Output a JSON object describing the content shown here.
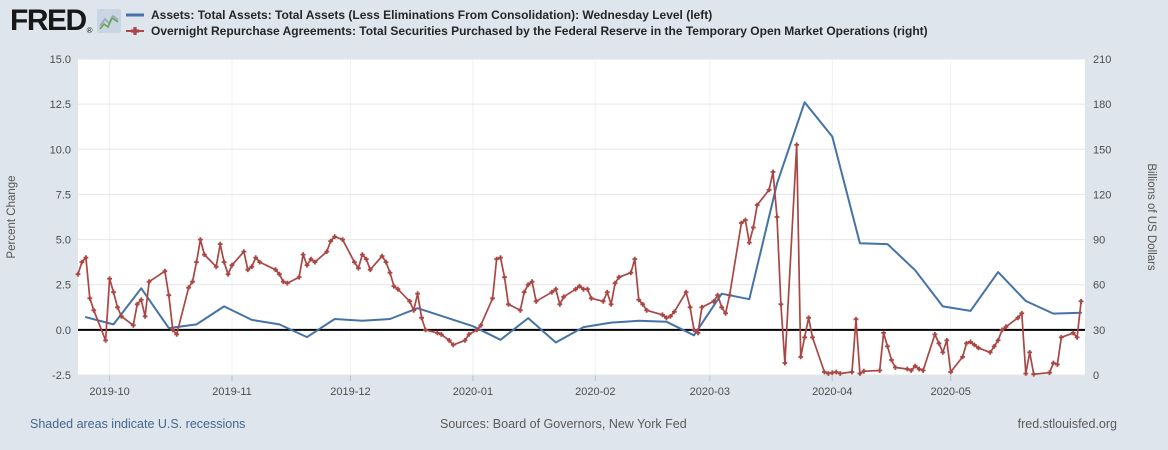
{
  "logo": {
    "text": "FRED",
    "registered": "®"
  },
  "legend": [
    {
      "label": "Assets: Total Assets: Total Assets (Less Eliminations From Consolidation): Wednesday Level (left)",
      "color": "#4572a7",
      "marker": "line"
    },
    {
      "label": "Overnight Repurchase Agreements: Total Securities Purchased by the Federal Reserve in the Temporary Open Market Operations (right)",
      "color": "#aa4643",
      "marker": "line-plus"
    }
  ],
  "footer": {
    "left": "Shaded areas indicate U.S. recessions",
    "center": "Sources: Board of Governors, New York Fed",
    "right": "fred.stlouisfed.org"
  },
  "colors": {
    "page_background": "#dee5ec",
    "plot_background": "#ffffff",
    "grid": "#e6e6e6",
    "vgrid": "#eff1f4",
    "zero_line": "#000000",
    "tick_text": "#4d4d4d",
    "axis_title": "#555555",
    "tick_mark": "#b8c4ce",
    "assets_line": "#4572a7",
    "repo_line": "#aa4643",
    "footer_link": "#44678f"
  },
  "chart_data": {
    "type": "line",
    "title": "",
    "left_axis": {
      "label": "Percent Change",
      "range": [
        -2.5,
        15.0
      ],
      "ticks": [
        15.0,
        12.5,
        10.0,
        7.5,
        5.0,
        2.5,
        0.0,
        -2.5
      ]
    },
    "right_axis": {
      "label": "Billions of US Dollars",
      "range": [
        0,
        210
      ],
      "ticks": [
        210,
        180,
        150,
        120,
        90,
        60,
        30,
        0
      ]
    },
    "x_axis": {
      "start": "2019-09-23",
      "end": "2020-06-04",
      "ticks": [
        {
          "date": "2019-10-01",
          "label": "2019-10"
        },
        {
          "date": "2019-11-01",
          "label": "2019-11"
        },
        {
          "date": "2019-12-01",
          "label": "2019-12"
        },
        {
          "date": "2020-01-01",
          "label": "2020-01"
        },
        {
          "date": "2020-02-01",
          "label": "2020-02"
        },
        {
          "date": "2020-03-01",
          "label": "2020-03"
        },
        {
          "date": "2020-04-01",
          "label": "2020-04"
        },
        {
          "date": "2020-05-01",
          "label": "2020-05"
        }
      ]
    },
    "grid": true,
    "legend_position": "top-left",
    "series": [
      {
        "name": "Assets: Total Assets: Total Assets (Less Eliminations From Consolidation): Wednesday Level",
        "axis": "left",
        "color": "#4572a7",
        "markers": false,
        "units": "Percent Change",
        "points": [
          [
            "2019-09-25",
            0.7
          ],
          [
            "2019-10-02",
            0.3
          ],
          [
            "2019-10-09",
            2.3
          ],
          [
            "2019-10-16",
            0.1
          ],
          [
            "2019-10-23",
            0.3
          ],
          [
            "2019-10-30",
            1.3
          ],
          [
            "2019-11-06",
            0.55
          ],
          [
            "2019-11-13",
            0.3
          ],
          [
            "2019-11-20",
            -0.4
          ],
          [
            "2019-11-27",
            0.6
          ],
          [
            "2019-12-04",
            0.5
          ],
          [
            "2019-12-11",
            0.6
          ],
          [
            "2019-12-18",
            1.2
          ],
          [
            "2019-12-25",
            0.7
          ],
          [
            "2020-01-01",
            0.2
          ],
          [
            "2020-01-08",
            -0.55
          ],
          [
            "2020-01-15",
            0.65
          ],
          [
            "2020-01-22",
            -0.7
          ],
          [
            "2020-01-29",
            0.15
          ],
          [
            "2020-02-05",
            0.4
          ],
          [
            "2020-02-12",
            0.5
          ],
          [
            "2020-02-19",
            0.45
          ],
          [
            "2020-02-26",
            -0.3
          ],
          [
            "2020-03-04",
            2.0
          ],
          [
            "2020-03-11",
            1.7
          ],
          [
            "2020-03-18",
            8.1
          ],
          [
            "2020-03-25",
            12.6
          ],
          [
            "2020-04-01",
            10.7
          ],
          [
            "2020-04-08",
            4.8
          ],
          [
            "2020-04-15",
            4.75
          ],
          [
            "2020-04-22",
            3.3
          ],
          [
            "2020-04-29",
            1.3
          ],
          [
            "2020-05-06",
            1.05
          ],
          [
            "2020-05-13",
            3.2
          ],
          [
            "2020-05-20",
            1.6
          ],
          [
            "2020-05-27",
            0.9
          ],
          [
            "2020-06-03",
            0.95
          ]
        ]
      },
      {
        "name": "Overnight Repurchase Agreements: Total Securities Purchased by the Federal Reserve in the Temporary Open Market Operations",
        "axis": "right",
        "color": "#aa4643",
        "markers": true,
        "units": "Billions of US Dollars",
        "points": [
          [
            "2019-09-23",
            67
          ],
          [
            "2019-09-24",
            75
          ],
          [
            "2019-09-25",
            78
          ],
          [
            "2019-09-26",
            51
          ],
          [
            "2019-09-27",
            43
          ],
          [
            "2019-09-30",
            23
          ],
          [
            "2019-10-01",
            64
          ],
          [
            "2019-10-02",
            55
          ],
          [
            "2019-10-03",
            45
          ],
          [
            "2019-10-04",
            39
          ],
          [
            "2019-10-07",
            33
          ],
          [
            "2019-10-08",
            47
          ],
          [
            "2019-10-09",
            50
          ],
          [
            "2019-10-10",
            39
          ],
          [
            "2019-10-11",
            62
          ],
          [
            "2019-10-15",
            69
          ],
          [
            "2019-10-16",
            53
          ],
          [
            "2019-10-17",
            30
          ],
          [
            "2019-10-18",
            27
          ],
          [
            "2019-10-21",
            58
          ],
          [
            "2019-10-22",
            62
          ],
          [
            "2019-10-23",
            75
          ],
          [
            "2019-10-24",
            90
          ],
          [
            "2019-10-25",
            80
          ],
          [
            "2019-10-28",
            72
          ],
          [
            "2019-10-29",
            87
          ],
          [
            "2019-10-30",
            75
          ],
          [
            "2019-10-31",
            67
          ],
          [
            "2019-11-01",
            73
          ],
          [
            "2019-11-04",
            82
          ],
          [
            "2019-11-05",
            70
          ],
          [
            "2019-11-06",
            72
          ],
          [
            "2019-11-07",
            78
          ],
          [
            "2019-11-08",
            75
          ],
          [
            "2019-11-12",
            70
          ],
          [
            "2019-11-13",
            67
          ],
          [
            "2019-11-14",
            62
          ],
          [
            "2019-11-15",
            61
          ],
          [
            "2019-11-18",
            65
          ],
          [
            "2019-11-19",
            80
          ],
          [
            "2019-11-20",
            73
          ],
          [
            "2019-11-21",
            77
          ],
          [
            "2019-11-22",
            75
          ],
          [
            "2019-11-25",
            82
          ],
          [
            "2019-11-26",
            89
          ],
          [
            "2019-11-27",
            92
          ],
          [
            "2019-11-29",
            90
          ],
          [
            "2019-12-02",
            75
          ],
          [
            "2019-12-03",
            71
          ],
          [
            "2019-12-04",
            80
          ],
          [
            "2019-12-05",
            77
          ],
          [
            "2019-12-06",
            70
          ],
          [
            "2019-12-09",
            79
          ],
          [
            "2019-12-10",
            75
          ],
          [
            "2019-12-11",
            68
          ],
          [
            "2019-12-12",
            59
          ],
          [
            "2019-12-13",
            57
          ],
          [
            "2019-12-16",
            49
          ],
          [
            "2019-12-17",
            43
          ],
          [
            "2019-12-18",
            54
          ],
          [
            "2019-12-19",
            38
          ],
          [
            "2019-12-20",
            30
          ],
          [
            "2019-12-23",
            28
          ],
          [
            "2019-12-24",
            27
          ],
          [
            "2019-12-26",
            23
          ],
          [
            "2019-12-27",
            20
          ],
          [
            "2019-12-30",
            23
          ],
          [
            "2019-12-31",
            27
          ],
          [
            "2020-01-02",
            30
          ],
          [
            "2020-01-03",
            33
          ],
          [
            "2020-01-06",
            51
          ],
          [
            "2020-01-07",
            77
          ],
          [
            "2020-01-08",
            78
          ],
          [
            "2020-01-09",
            65
          ],
          [
            "2020-01-10",
            47
          ],
          [
            "2020-01-13",
            43
          ],
          [
            "2020-01-14",
            55
          ],
          [
            "2020-01-15",
            60
          ],
          [
            "2020-01-16",
            62
          ],
          [
            "2020-01-17",
            49
          ],
          [
            "2020-01-21",
            55
          ],
          [
            "2020-01-22",
            57
          ],
          [
            "2020-01-23",
            47
          ],
          [
            "2020-01-24",
            52
          ],
          [
            "2020-01-27",
            57
          ],
          [
            "2020-01-28",
            59
          ],
          [
            "2020-01-29",
            57
          ],
          [
            "2020-01-30",
            57
          ],
          [
            "2020-01-31",
            51
          ],
          [
            "2020-02-03",
            49
          ],
          [
            "2020-02-04",
            55
          ],
          [
            "2020-02-05",
            47
          ],
          [
            "2020-02-06",
            61
          ],
          [
            "2020-02-07",
            65
          ],
          [
            "2020-02-10",
            68
          ],
          [
            "2020-02-11",
            77
          ],
          [
            "2020-02-12",
            50
          ],
          [
            "2020-02-13",
            47
          ],
          [
            "2020-02-14",
            43
          ],
          [
            "2020-02-18",
            40
          ],
          [
            "2020-02-19",
            38
          ],
          [
            "2020-02-20",
            39
          ],
          [
            "2020-02-21",
            42
          ],
          [
            "2020-02-24",
            55
          ],
          [
            "2020-02-25",
            45
          ],
          [
            "2020-02-26",
            30
          ],
          [
            "2020-02-27",
            28
          ],
          [
            "2020-02-28",
            45
          ],
          [
            "2020-03-02",
            49
          ],
          [
            "2020-03-03",
            53
          ],
          [
            "2020-03-04",
            45
          ],
          [
            "2020-03-05",
            41
          ],
          [
            "2020-03-06",
            53
          ],
          [
            "2020-03-09",
            101
          ],
          [
            "2020-03-10",
            103
          ],
          [
            "2020-03-11",
            88
          ],
          [
            "2020-03-12",
            98
          ],
          [
            "2020-03-13",
            113
          ],
          [
            "2020-03-16",
            123
          ],
          [
            "2020-03-17",
            135
          ],
          [
            "2020-03-18",
            105
          ],
          [
            "2020-03-19",
            47
          ],
          [
            "2020-03-20",
            8
          ],
          [
            "2020-03-23",
            153
          ],
          [
            "2020-03-24",
            12
          ],
          [
            "2020-03-25",
            25
          ],
          [
            "2020-03-26",
            38
          ],
          [
            "2020-03-27",
            25
          ],
          [
            "2020-03-30",
            2
          ],
          [
            "2020-03-31",
            1
          ],
          [
            "2020-04-01",
            1.5
          ],
          [
            "2020-04-02",
            2
          ],
          [
            "2020-04-03",
            1
          ],
          [
            "2020-04-06",
            2
          ],
          [
            "2020-04-07",
            37
          ],
          [
            "2020-04-08",
            1
          ],
          [
            "2020-04-09",
            2.5
          ],
          [
            "2020-04-13",
            3
          ],
          [
            "2020-04-14",
            28
          ],
          [
            "2020-04-15",
            19
          ],
          [
            "2020-04-16",
            10
          ],
          [
            "2020-04-17",
            5
          ],
          [
            "2020-04-20",
            4
          ],
          [
            "2020-04-21",
            3
          ],
          [
            "2020-04-22",
            6
          ],
          [
            "2020-04-23",
            4
          ],
          [
            "2020-04-24",
            3
          ],
          [
            "2020-04-27",
            27
          ],
          [
            "2020-04-28",
            21
          ],
          [
            "2020-04-29",
            15
          ],
          [
            "2020-04-30",
            23
          ],
          [
            "2020-05-01",
            2
          ],
          [
            "2020-05-04",
            12
          ],
          [
            "2020-05-05",
            21
          ],
          [
            "2020-05-06",
            22
          ],
          [
            "2020-05-07",
            20
          ],
          [
            "2020-05-08",
            18
          ],
          [
            "2020-05-11",
            15
          ],
          [
            "2020-05-12",
            19
          ],
          [
            "2020-05-13",
            23
          ],
          [
            "2020-05-14",
            30
          ],
          [
            "2020-05-15",
            32
          ],
          [
            "2020-05-18",
            38
          ],
          [
            "2020-05-19",
            41
          ],
          [
            "2020-05-20",
            1
          ],
          [
            "2020-05-21",
            15
          ],
          [
            "2020-05-22",
            0.5
          ],
          [
            "2020-05-26",
            1.5
          ],
          [
            "2020-05-27",
            8
          ],
          [
            "2020-05-28",
            7
          ],
          [
            "2020-05-29",
            25
          ],
          [
            "2020-06-01",
            28
          ],
          [
            "2020-06-02",
            25
          ],
          [
            "2020-06-03",
            49
          ]
        ]
      }
    ]
  }
}
